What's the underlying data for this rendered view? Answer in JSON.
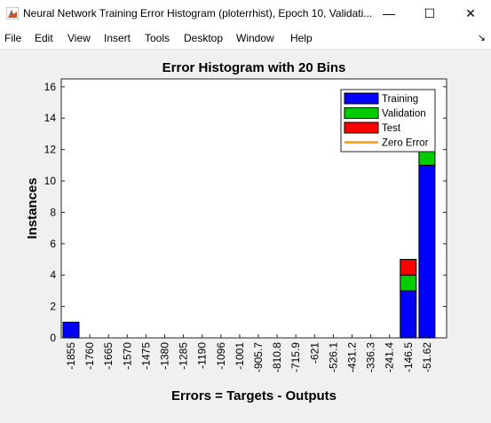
{
  "window": {
    "title": "Neural Network Training Error Histogram (ploterrhist), Epoch 10, Validati...",
    "minimize_glyph": "—",
    "maximize_glyph": "☐",
    "close_glyph": "✕"
  },
  "menu": {
    "items": [
      "File",
      "Edit",
      "View",
      "Insert",
      "Tools",
      "Desktop",
      "Window",
      "Help"
    ],
    "dock_glyph": "↘"
  },
  "colors": {
    "training": "#0000ff",
    "validation": "#00cc00",
    "test": "#ff0000",
    "zero_error": "#ff9900"
  },
  "chart_data": {
    "type": "bar",
    "stacked": true,
    "title": "Error Histogram with 20 Bins",
    "xlabel": "Errors = Targets - Outputs",
    "ylabel": "Instances",
    "ylim": [
      0,
      16.5
    ],
    "yticks": [
      0,
      2,
      4,
      6,
      8,
      10,
      12,
      14,
      16
    ],
    "categories": [
      "-1855",
      "-1760",
      "-1665",
      "-1570",
      "-1475",
      "-1380",
      "-1285",
      "-1190",
      "-1096",
      "-1001",
      "-905.7",
      "-810.8",
      "-715.9",
      "-621",
      "-526.1",
      "-431.2",
      "-336.3",
      "-241.4",
      "-146.5",
      "-51.62"
    ],
    "series": [
      {
        "name": "Training",
        "color": "#0000ff",
        "values": [
          1,
          0,
          0,
          0,
          0,
          0,
          0,
          0,
          0,
          0,
          0,
          0,
          0,
          0,
          0,
          0,
          0,
          0,
          3,
          11
        ]
      },
      {
        "name": "Validation",
        "color": "#00cc00",
        "values": [
          0,
          0,
          0,
          0,
          0,
          0,
          0,
          0,
          0,
          0,
          0,
          0,
          0,
          0,
          0,
          0,
          0,
          0,
          1,
          2
        ]
      },
      {
        "name": "Test",
        "color": "#ff0000",
        "values": [
          0,
          0,
          0,
          0,
          0,
          0,
          0,
          0,
          0,
          0,
          0,
          0,
          0,
          0,
          0,
          0,
          0,
          0,
          1,
          2
        ]
      }
    ],
    "zero_error_line": {
      "name": "Zero Error",
      "color": "#ff9900"
    },
    "legend_position": "top-right"
  }
}
